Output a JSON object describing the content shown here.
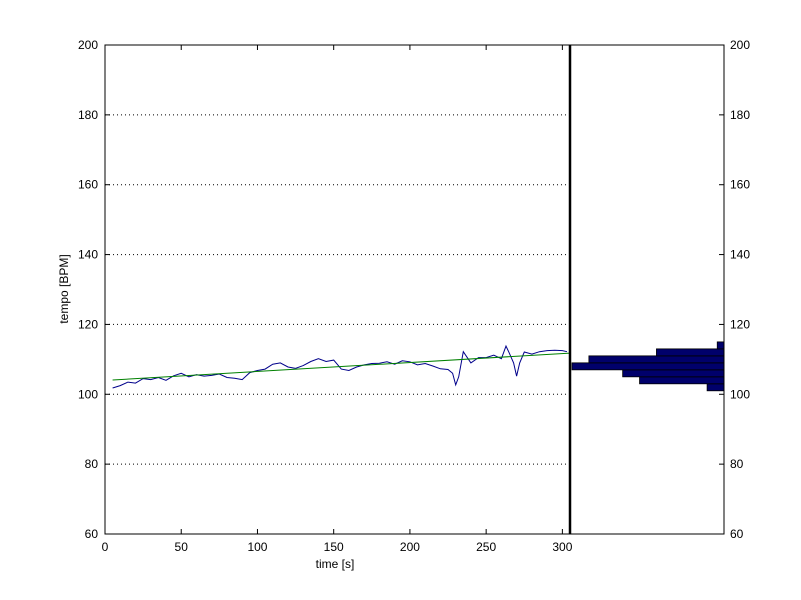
{
  "chart_data": [
    {
      "type": "line",
      "title": "",
      "xlabel": "time [s]",
      "ylabel": "tempo [BPM]",
      "xlim": [
        0,
        305
      ],
      "ylim": [
        60,
        200
      ],
      "x_ticks": [
        0,
        50,
        100,
        150,
        200,
        250,
        300
      ],
      "y_ticks": [
        60,
        80,
        100,
        120,
        140,
        160,
        180,
        200
      ],
      "grid": "horizontal-dotted",
      "series": [
        {
          "color": "#00008b",
          "x": [
            5,
            10,
            15,
            20,
            25,
            30,
            35,
            40,
            45,
            50,
            55,
            60,
            65,
            70,
            75,
            80,
            85,
            90,
            95,
            100,
            105,
            110,
            115,
            120,
            125,
            130,
            135,
            140,
            145,
            150,
            155,
            160,
            165,
            170,
            175,
            180,
            185,
            190,
            195,
            200,
            205,
            210,
            215,
            220,
            225,
            228,
            230,
            232,
            235,
            240,
            245,
            250,
            255,
            260,
            263,
            265,
            268,
            270,
            272,
            275,
            280,
            285,
            290,
            295,
            300,
            303
          ],
          "y": [
            101.8,
            102.5,
            103.5,
            103.2,
            104.5,
            104.2,
            104.8,
            104.0,
            105.3,
            106.0,
            105.0,
            105.6,
            105.2,
            105.4,
            105.8,
            104.8,
            104.6,
            104.2,
            106.2,
            106.8,
            107.2,
            108.6,
            109.0,
            107.8,
            107.4,
            108.2,
            109.4,
            110.2,
            109.4,
            109.8,
            107.2,
            106.8,
            107.8,
            108.4,
            108.8,
            108.9,
            109.3,
            108.6,
            109.6,
            109.3,
            108.4,
            108.8,
            108.1,
            107.3,
            107.1,
            106.0,
            102.7,
            105.0,
            112.2,
            109.0,
            110.5,
            110.5,
            111.2,
            110.2,
            113.8,
            112.0,
            109.0,
            105.2,
            109.0,
            112.1,
            111.5,
            112.2,
            112.5,
            112.6,
            112.5,
            112.2
          ]
        },
        {
          "color": "#008000",
          "x": [
            5,
            305
          ],
          "y": [
            104.1,
            111.8
          ]
        }
      ]
    },
    {
      "type": "bar",
      "orientation": "horizontal",
      "color": "#00006b",
      "ylim": [
        60,
        200
      ],
      "y_ticks": [
        60,
        80,
        100,
        120,
        140,
        160,
        180,
        200
      ],
      "bins": [
        {
          "from": 101,
          "to": 103,
          "count": 5
        },
        {
          "from": 103,
          "to": 105,
          "count": 25
        },
        {
          "from": 105,
          "to": 107,
          "count": 30
        },
        {
          "from": 107,
          "to": 109,
          "count": 45
        },
        {
          "from": 109,
          "to": 111,
          "count": 40
        },
        {
          "from": 111,
          "to": 113,
          "count": 20
        },
        {
          "from": 113,
          "to": 115,
          "count": 2
        }
      ]
    }
  ]
}
